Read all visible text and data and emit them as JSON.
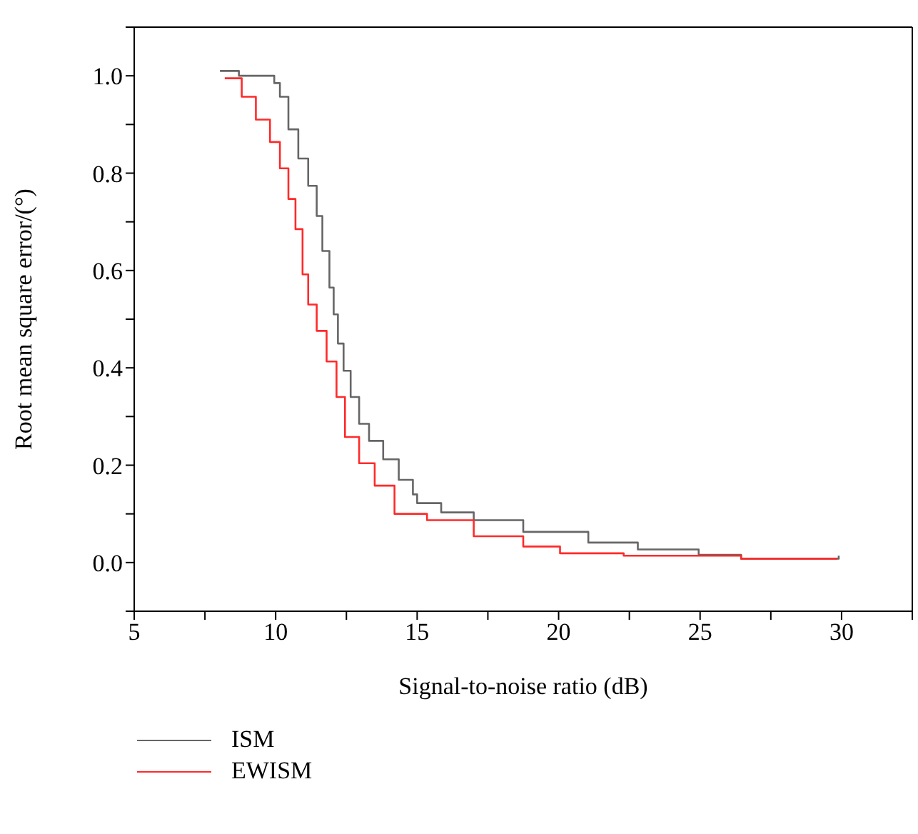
{
  "chart_data": {
    "type": "step",
    "xlabel": "Signal-to-noise ratio (dB)",
    "ylabel": "Root mean square error/(°)",
    "xlim": [
      5,
      32.5
    ],
    "xticks": [
      5,
      {
        "value": 7.5,
        "label": null
      },
      10,
      {
        "value": 12.5,
        "label": null
      },
      15,
      {
        "value": 17.5,
        "label": null
      },
      20,
      {
        "value": 22.5,
        "label": null
      },
      25,
      {
        "value": 27.5,
        "label": null
      },
      30,
      {
        "value": 32.5,
        "label": null
      }
    ],
    "ylim": [
      -0.1,
      1.1
    ],
    "yticks": [
      {
        "value": -0.1,
        "label": null
      },
      {
        "value": 0,
        "label": "0.0"
      },
      {
        "value": 0.1,
        "label": null
      },
      0.2,
      {
        "value": 0.3,
        "label": null
      },
      0.4,
      {
        "value": 0.5,
        "label": null
      },
      0.6,
      {
        "value": 0.7,
        "label": null
      },
      0.8,
      {
        "value": 0.9,
        "label": null
      },
      {
        "value": 1,
        "label": "1.0"
      },
      {
        "value": 1.1,
        "label": null
      }
    ],
    "legend": "bottom left",
    "line_style": "solid",
    "marker": "none",
    "series": [
      {
        "name": "ISM",
        "color": "#666666",
        "x": [
          8.03,
          8.7,
          9.45,
          9.95,
          10.15,
          10.45,
          10.8,
          11.15,
          11.45,
          11.65,
          11.9,
          12.05,
          12.2,
          12.4,
          12.65,
          12.95,
          13.3,
          13.8,
          14.35,
          14.85,
          15.0,
          15.85,
          17.0,
          18.75,
          21.05,
          22.8,
          24.95,
          26.45,
          29.5,
          29.9
        ],
        "values": [
          1.01,
          1.0,
          1.0,
          0.985,
          0.957,
          0.89,
          0.83,
          0.774,
          0.712,
          0.64,
          0.565,
          0.51,
          0.45,
          0.394,
          0.34,
          0.285,
          0.25,
          0.212,
          0.17,
          0.14,
          0.122,
          0.103,
          0.087,
          0.063,
          0.041,
          0.027,
          0.016,
          0.008,
          0.008,
          0.014
        ]
      },
      {
        "name": "EWISM",
        "color": "#ff2a2a",
        "x": [
          8.2,
          8.8,
          9.3,
          9.8,
          10.15,
          10.45,
          10.7,
          10.95,
          11.15,
          11.45,
          11.8,
          12.15,
          12.45,
          12.95,
          13.5,
          14.2,
          15.35,
          17.0,
          18.75,
          20.05,
          22.3,
          26.45,
          29.85
        ],
        "values": [
          0.995,
          0.957,
          0.91,
          0.864,
          0.81,
          0.747,
          0.685,
          0.592,
          0.53,
          0.476,
          0.413,
          0.34,
          0.258,
          0.204,
          0.158,
          0.1,
          0.087,
          0.054,
          0.033,
          0.019,
          0.014,
          0.008,
          0.008
        ]
      }
    ]
  }
}
